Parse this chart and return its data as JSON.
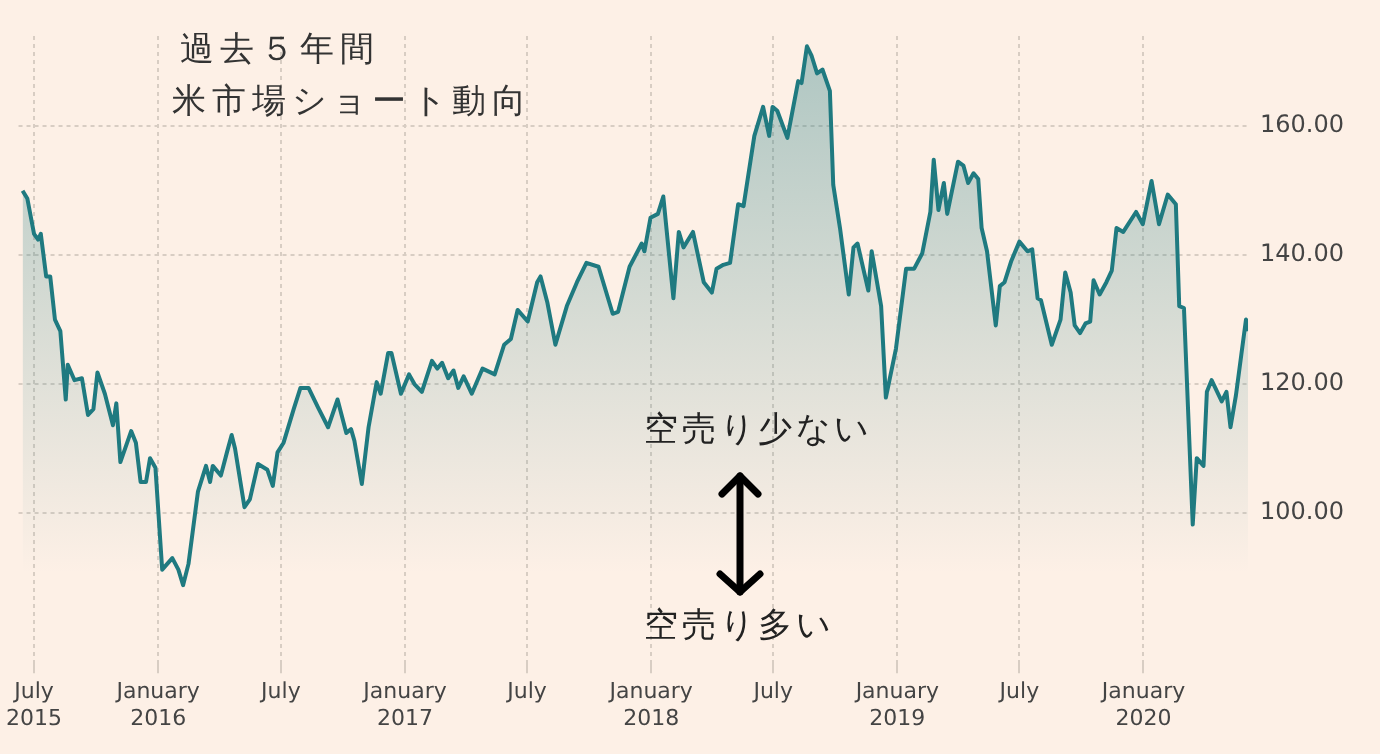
{
  "chart_data": {
    "type": "area",
    "title": "過去５年間",
    "subtitle": "米市場ショート動向",
    "annotations": [
      "空売り少ない",
      "空売り多い"
    ],
    "x": [
      "2015-06-14",
      "2015-06-21",
      "2015-07-01",
      "2015-07-07",
      "2015-07-11",
      "2015-07-19",
      "2015-07-25",
      "2015-08-01",
      "2015-08-09",
      "2015-08-17",
      "2015-08-20",
      "2015-08-30",
      "2015-09-10",
      "2015-09-19",
      "2015-09-27",
      "2015-10-03",
      "2015-10-14",
      "2015-10-26",
      "2015-10-31",
      "2015-11-06",
      "2015-11-22",
      "2015-11-29",
      "2015-12-06",
      "2015-12-14",
      "2015-12-20",
      "2015-12-28",
      "2016-01-07",
      "2016-01-22",
      "2016-01-31",
      "2016-02-07",
      "2016-02-15",
      "2016-02-29",
      "2016-03-12",
      "2016-03-18",
      "2016-03-22",
      "2016-04-03",
      "2016-04-12",
      "2016-04-19",
      "2016-04-24",
      "2016-05-08",
      "2016-05-16",
      "2016-05-28",
      "2016-06-11",
      "2016-06-19",
      "2016-06-26",
      "2016-07-05",
      "2016-07-20",
      "2016-07-30",
      "2016-08-11",
      "2016-08-25",
      "2016-09-09",
      "2016-09-23",
      "2016-10-06",
      "2016-10-13",
      "2016-10-18",
      "2016-10-29",
      "2016-11-08",
      "2016-11-20",
      "2016-11-26",
      "2016-12-07",
      "2016-12-12",
      "2016-12-26",
      "2017-01-07",
      "2017-01-15",
      "2017-01-26",
      "2017-02-10",
      "2017-02-18",
      "2017-02-25",
      "2017-03-06",
      "2017-03-14",
      "2017-03-21",
      "2017-03-29",
      "2017-04-10",
      "2017-04-26",
      "2017-05-14",
      "2017-05-28",
      "2017-06-07",
      "2017-06-17",
      "2017-07-02",
      "2017-07-16",
      "2017-07-21",
      "2017-07-31",
      "2017-08-12",
      "2017-08-29",
      "2017-09-13",
      "2017-09-27",
      "2017-10-15",
      "2017-11-05",
      "2017-11-13",
      "2017-11-30",
      "2017-12-18",
      "2017-12-22",
      "2017-12-31",
      "2018-01-11",
      "2018-01-19",
      "2018-02-03",
      "2018-02-11",
      "2018-02-18",
      "2018-03-04",
      "2018-03-20",
      "2018-04-01",
      "2018-04-08",
      "2018-04-18",
      "2018-04-28",
      "2018-05-10",
      "2018-05-18",
      "2018-06-03",
      "2018-06-16",
      "2018-06-25",
      "2018-06-30",
      "2018-07-07",
      "2018-07-22",
      "2018-08-07",
      "2018-08-12",
      "2018-08-20",
      "2018-08-27",
      "2018-09-04",
      "2018-09-12",
      "2018-09-23",
      "2018-09-28",
      "2018-10-08",
      "2018-10-21",
      "2018-10-28",
      "2018-11-03",
      "2018-11-19",
      "2018-11-24",
      "2018-12-08",
      "2018-12-15",
      "2018-12-30",
      "2019-01-14",
      "2019-01-26",
      "2019-02-07",
      "2019-02-19",
      "2019-02-24",
      "2019-03-03",
      "2019-03-11",
      "2019-03-16",
      "2019-04-01",
      "2019-04-09",
      "2019-04-16",
      "2019-04-24",
      "2019-05-01",
      "2019-05-06",
      "2019-05-14",
      "2019-05-27",
      "2019-06-02",
      "2019-06-09",
      "2019-06-19",
      "2019-07-01",
      "2019-07-13",
      "2019-07-20",
      "2019-07-28",
      "2019-08-02",
      "2019-08-18",
      "2019-08-31",
      "2019-09-07",
      "2019-09-15",
      "2019-09-21",
      "2019-09-29",
      "2019-10-07",
      "2019-10-14",
      "2019-10-19",
      "2019-10-28",
      "2019-11-07",
      "2019-11-15",
      "2019-11-22",
      "2019-12-02",
      "2019-12-21",
      "2019-12-31",
      "2020-01-13",
      "2020-01-24",
      "2020-02-06",
      "2020-02-18",
      "2020-02-23",
      "2020-03-01",
      "2020-03-14",
      "2020-03-20",
      "2020-03-30",
      "2020-04-04",
      "2020-04-11",
      "2020-04-26",
      "2020-05-03",
      "2020-05-09",
      "2020-05-17",
      "2020-05-25",
      "2020-06-01",
      "2020-06-04"
    ],
    "series": [
      {
        "color": "#1f7a80",
        "values": [
          150,
          148.8,
          143.3,
          142.4,
          143.3,
          136.7,
          136.7,
          130,
          128.2,
          117.6,
          123,
          120.6,
          120.9,
          115.2,
          116.1,
          121.8,
          118.5,
          113.6,
          117,
          107.9,
          112.7,
          110.9,
          104.8,
          104.8,
          108.5,
          107,
          91.2,
          93,
          91.2,
          88.8,
          92.1,
          103.3,
          107.3,
          104.8,
          107.3,
          105.8,
          109.4,
          112.1,
          110,
          100.9,
          102.1,
          107.6,
          106.7,
          104.2,
          109.4,
          110.9,
          116.1,
          119.4,
          119.4,
          116.4,
          113.3,
          117.6,
          112.4,
          113,
          111.2,
          104.5,
          113.3,
          120.3,
          118.5,
          124.8,
          124.8,
          118.5,
          121.5,
          120,
          118.8,
          123.6,
          122.4,
          123.3,
          120.9,
          122.1,
          119.4,
          121.2,
          118.5,
          122.4,
          121.5,
          126.1,
          127,
          131.5,
          129.7,
          135.8,
          136.7,
          132.7,
          126.1,
          132.1,
          135.8,
          138.8,
          138.2,
          130.9,
          131.2,
          138.2,
          141.8,
          140.6,
          145.8,
          146.4,
          149.1,
          133.3,
          143.6,
          141.2,
          143.6,
          135.8,
          134.2,
          137.9,
          138.5,
          138.8,
          147.9,
          147.6,
          158.5,
          163,
          158.5,
          163,
          162.4,
          158.2,
          167,
          166.7,
          172.4,
          170.9,
          168.2,
          168.8,
          165.5,
          150.9,
          144.2,
          133.9,
          141.2,
          141.8,
          134.5,
          140.6,
          132.1,
          117.9,
          125.5,
          137.9,
          137.9,
          140.3,
          146.7,
          154.8,
          147,
          151.2,
          146.4,
          154.5,
          153.9,
          151.2,
          152.7,
          151.8,
          144.2,
          140.6,
          129.1,
          135.2,
          135.8,
          139.1,
          142.1,
          140.6,
          140.9,
          133.3,
          133,
          126.1,
          130,
          137.3,
          134.2,
          129.1,
          127.9,
          129.4,
          129.7,
          136.1,
          133.9,
          135.8,
          137.6,
          144.2,
          143.6,
          146.7,
          144.8,
          151.5,
          144.8,
          149.4,
          147.9,
          132.1,
          131.8,
          98.2,
          108.5,
          107.3,
          118.8,
          120.6,
          117.3,
          118.8,
          113.3,
          118.2,
          124.5,
          130,
          128.2
        ]
      }
    ],
    "xlim": [
      "2015-06-08",
      "2020-06-04"
    ],
    "xticks": [
      {
        "value": "2015-07-01",
        "label": "July 2015"
      },
      {
        "value": "2016-01-01",
        "label": "January 2016"
      },
      {
        "value": "2016-07-01",
        "label": "July"
      },
      {
        "value": "2017-01-01",
        "label": "January 2017"
      },
      {
        "value": "2017-07-01",
        "label": "July"
      },
      {
        "value": "2018-01-01",
        "label": "January 2018"
      },
      {
        "value": "2018-07-01",
        "label": "July"
      },
      {
        "value": "2019-01-01",
        "label": "January 2019"
      },
      {
        "value": "2019-07-01",
        "label": "July"
      },
      {
        "value": "2020-01-01",
        "label": "January 2020"
      }
    ],
    "ylim": [
      77,
      174
    ],
    "yticks": [
      {
        "value": 100,
        "label": "100.00"
      },
      {
        "value": 120,
        "label": "120.00"
      },
      {
        "value": 140,
        "label": "140.00"
      },
      {
        "value": 160,
        "label": "160.00"
      }
    ],
    "grid": true
  }
}
